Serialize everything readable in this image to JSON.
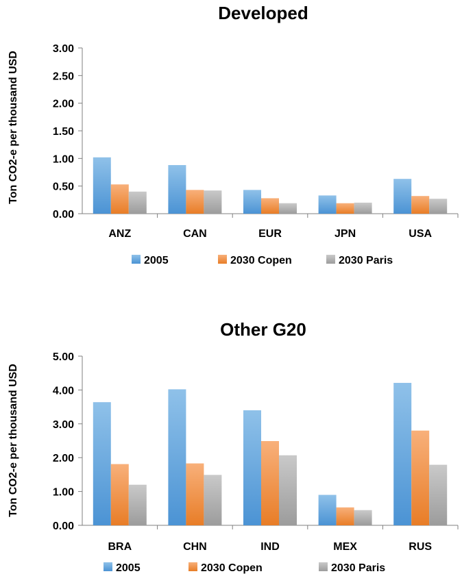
{
  "chart_data": [
    {
      "type": "bar",
      "title": "Developed",
      "xlabel": "",
      "ylabel": "Ton CO2-e per thousand USD",
      "ylim": [
        0,
        3
      ],
      "yticks": [
        "0.00",
        "0.50",
        "1.00",
        "1.50",
        "2.00",
        "2.50",
        "3.00"
      ],
      "categories": [
        "ANZ",
        "CAN",
        "EUR",
        "JPN",
        "USA"
      ],
      "series": [
        {
          "name": "2005",
          "values": [
            1.02,
            0.88,
            0.43,
            0.33,
            0.63
          ]
        },
        {
          "name": "2030 Copen",
          "values": [
            0.53,
            0.43,
            0.28,
            0.19,
            0.32
          ]
        },
        {
          "name": "2030 Paris",
          "values": [
            0.4,
            0.42,
            0.19,
            0.2,
            0.27
          ]
        }
      ],
      "legend_position": "bottom",
      "grid": false
    },
    {
      "type": "bar",
      "title": "Other G20",
      "xlabel": "",
      "ylabel": "Ton CO2-e per thousand USD",
      "ylim": [
        0,
        5
      ],
      "yticks": [
        "0.00",
        "1.00",
        "2.00",
        "3.00",
        "4.00",
        "5.00"
      ],
      "categories": [
        "BRA",
        "CHN",
        "IND",
        "MEX",
        "RUS"
      ],
      "series": [
        {
          "name": "2005",
          "values": [
            3.64,
            4.02,
            3.4,
            0.9,
            4.21
          ]
        },
        {
          "name": "2030 Copen",
          "values": [
            1.81,
            1.83,
            2.49,
            0.53,
            2.8
          ]
        },
        {
          "name": "2030 Paris",
          "values": [
            1.2,
            1.49,
            2.07,
            0.45,
            1.79
          ]
        }
      ],
      "legend_position": "bottom",
      "grid": false
    }
  ],
  "colors": {
    "series": [
      {
        "light": "#8fc1e9",
        "dark": "#4b93d4"
      },
      {
        "light": "#f8b07a",
        "dark": "#e87d27"
      },
      {
        "light": "#c9c9c9",
        "dark": "#9c9c9c"
      }
    ],
    "axis": "#7f7f7f"
  }
}
